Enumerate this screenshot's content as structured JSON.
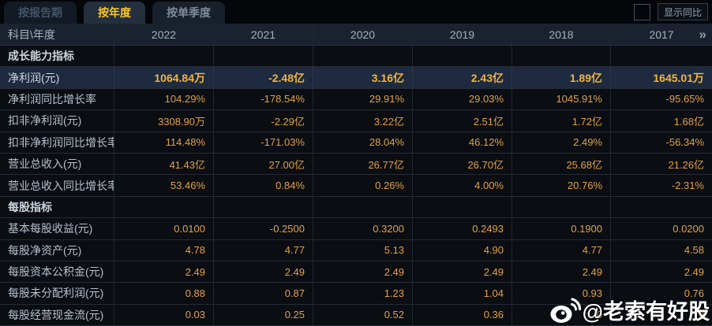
{
  "tabs": [
    {
      "label": "按报告期",
      "state": "inactive"
    },
    {
      "label": "按年度",
      "state": "active"
    },
    {
      "label": "按单季度",
      "state": "inactive"
    }
  ],
  "controls": {
    "show_yoy_label": "显示同比",
    "checkbox_checked": false
  },
  "table": {
    "corner_header": "科目\\年度",
    "year_columns": [
      "2022",
      "2021",
      "2020",
      "2019",
      "2018",
      "2017"
    ],
    "more_columns_icon": "»",
    "rows": [
      {
        "type": "section",
        "label": "成长能力指标",
        "values": [
          "",
          "",
          "",
          "",
          "",
          ""
        ]
      },
      {
        "type": "highlight",
        "label": "净利润(元)",
        "values": [
          "1064.84万",
          "-2.48亿",
          "3.16亿",
          "2.43亿",
          "1.89亿",
          "1645.01万"
        ]
      },
      {
        "type": "data",
        "label": "净利润同比增长率",
        "values": [
          "104.29%",
          "-178.54%",
          "29.91%",
          "29.03%",
          "1045.91%",
          "-95.65%"
        ]
      },
      {
        "type": "data",
        "label": "扣非净利润(元)",
        "values": [
          "3308.90万",
          "-2.29亿",
          "3.22亿",
          "2.51亿",
          "1.72亿",
          "1.68亿"
        ]
      },
      {
        "type": "data",
        "label": "扣非净利润同比增长率",
        "values": [
          "114.48%",
          "-171.03%",
          "28.04%",
          "46.12%",
          "2.49%",
          "-56.34%"
        ]
      },
      {
        "type": "data",
        "label": "营业总收入(元)",
        "values": [
          "41.43亿",
          "27.00亿",
          "26.77亿",
          "26.70亿",
          "25.68亿",
          "21.26亿"
        ]
      },
      {
        "type": "data",
        "label": "营业总收入同比增长率",
        "values": [
          "53.46%",
          "0.84%",
          "0.26%",
          "4.00%",
          "20.76%",
          "-2.31%"
        ]
      },
      {
        "type": "section",
        "label": "每股指标",
        "values": [
          "",
          "",
          "",
          "",
          "",
          ""
        ]
      },
      {
        "type": "data",
        "label": "基本每股收益(元)",
        "values": [
          "0.0100",
          "-0.2500",
          "0.3200",
          "0.2493",
          "0.1900",
          "0.0200"
        ]
      },
      {
        "type": "data",
        "label": "每股净资产(元)",
        "values": [
          "4.78",
          "4.77",
          "5.13",
          "4.90",
          "4.77",
          "4.58"
        ]
      },
      {
        "type": "data",
        "label": "每股资本公积金(元)",
        "values": [
          "2.49",
          "2.49",
          "2.49",
          "2.49",
          "2.49",
          "2.49"
        ]
      },
      {
        "type": "data",
        "label": "每股未分配利润(元)",
        "values": [
          "0.88",
          "0.87",
          "1.23",
          "1.04",
          "0.93",
          "0.76"
        ]
      },
      {
        "type": "data",
        "label": "每股经营现金流(元)",
        "values": [
          "0.03",
          "0.25",
          "0.52",
          "0.36",
          "0",
          "9"
        ]
      }
    ]
  },
  "watermark": {
    "text": "@老索有好股",
    "icon": "weibo-icon"
  },
  "colors": {
    "accent_gold": "#f3b43e",
    "value_gold": "#e2a246",
    "tab_active_text": "#f7c72e",
    "highlight_row_bg": "#1d2a40",
    "header_row_bg": "#1a2230",
    "page_bg": "#07090d",
    "watermark_text": "#ffffff"
  }
}
